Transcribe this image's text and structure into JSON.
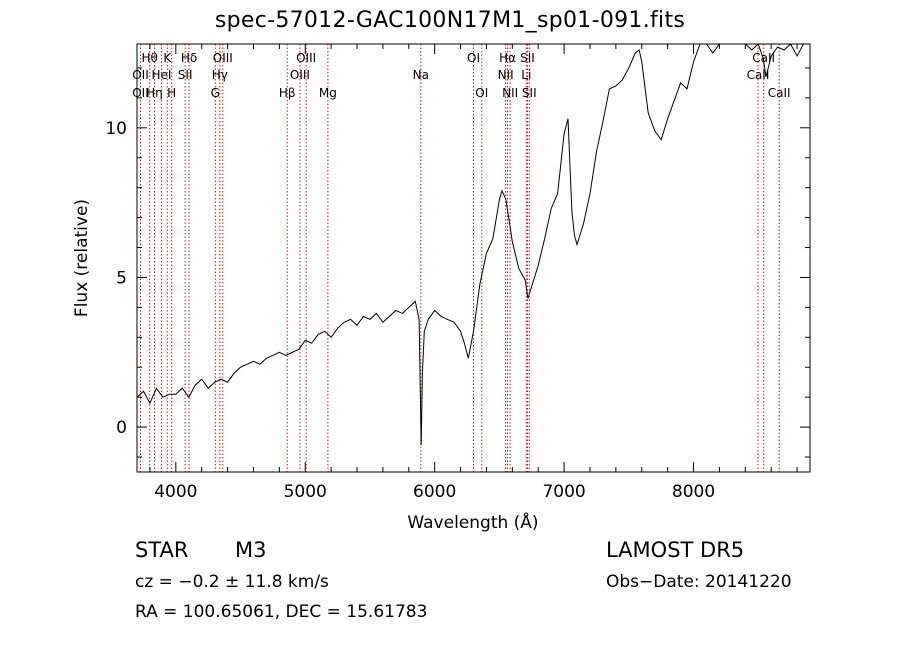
{
  "page": {
    "title": "spec-57012-GAC100N17M1_sp01-091.fits",
    "object_class": "STAR",
    "subclass": "M3",
    "survey": "LAMOST  DR5",
    "cz": "cz = −0.2 ± 11.8 km/s",
    "obs_date": "Obs−Date: 20141220",
    "coords": "RA = 100.65061, DEC =  15.61783"
  },
  "chart_data": {
    "type": "line",
    "title": "spec-57012-GAC100N17M1_sp01-091.fits",
    "xlabel": "Wavelength (Å)",
    "ylabel": "Flux (relative)",
    "xlim": [
      3700,
      8900
    ],
    "ylim": [
      -1.5,
      12.8
    ],
    "x_ticks": [
      4000,
      5000,
      6000,
      7000,
      8000
    ],
    "y_ticks": [
      0,
      5,
      10
    ],
    "grid": false,
    "series": [
      {
        "color": "#000000",
        "x": [
          3700,
          3750,
          3800,
          3850,
          3900,
          3950,
          4000,
          4050,
          4100,
          4150,
          4200,
          4250,
          4300,
          4350,
          4400,
          4450,
          4500,
          4550,
          4600,
          4650,
          4700,
          4750,
          4800,
          4850,
          4900,
          4950,
          5000,
          5050,
          5100,
          5150,
          5200,
          5250,
          5300,
          5350,
          5400,
          5450,
          5500,
          5550,
          5600,
          5650,
          5700,
          5750,
          5800,
          5850,
          5880,
          5890,
          5896,
          5905,
          5920,
          5950,
          6000,
          6050,
          6100,
          6150,
          6200,
          6230,
          6260,
          6300,
          6350,
          6400,
          6450,
          6500,
          6520,
          6550,
          6600,
          6650,
          6700,
          6720,
          6750,
          6800,
          6850,
          6900,
          6950,
          7000,
          7030,
          7060,
          7080,
          7100,
          7150,
          7200,
          7250,
          7300,
          7350,
          7400,
          7450,
          7500,
          7550,
          7580,
          7600,
          7650,
          7700,
          7750,
          7800,
          7850,
          7900,
          7950,
          8000,
          8050,
          8100,
          8150,
          8200,
          8250,
          8300,
          8350,
          8400,
          8450,
          8500,
          8540,
          8560,
          8600,
          8650,
          8700,
          8750,
          8800,
          8850,
          8900
        ],
        "y": [
          1.0,
          1.2,
          0.8,
          1.3,
          1.0,
          1.1,
          1.1,
          1.3,
          1.0,
          1.4,
          1.6,
          1.3,
          1.5,
          1.6,
          1.5,
          1.8,
          2.0,
          2.1,
          2.2,
          2.1,
          2.3,
          2.4,
          2.5,
          2.4,
          2.5,
          2.6,
          2.9,
          2.8,
          3.1,
          3.2,
          3.0,
          3.3,
          3.5,
          3.6,
          3.4,
          3.7,
          3.6,
          3.8,
          3.5,
          3.7,
          3.9,
          3.8,
          4.0,
          4.2,
          3.6,
          1.0,
          -0.6,
          1.8,
          3.2,
          3.6,
          3.9,
          3.7,
          3.6,
          3.5,
          3.2,
          2.8,
          2.3,
          3.2,
          4.8,
          5.8,
          6.3,
          7.6,
          7.9,
          7.6,
          6.2,
          5.3,
          4.9,
          4.3,
          4.7,
          5.4,
          6.3,
          7.3,
          7.8,
          9.8,
          10.3,
          7.2,
          6.4,
          6.1,
          6.8,
          7.8,
          9.2,
          10.2,
          11.3,
          11.4,
          11.6,
          12.0,
          12.5,
          12.6,
          12.2,
          10.5,
          9.9,
          9.6,
          10.3,
          10.9,
          11.5,
          11.3,
          12.2,
          12.8,
          13.0,
          12.5,
          12.8,
          13.2,
          13.1,
          12.9,
          13.1,
          12.6,
          13.0,
          12.3,
          11.7,
          12.4,
          12.7,
          12.6,
          12.9,
          12.4,
          12.8,
          13.0
        ]
      }
    ],
    "lines": [
      {
        "name": "Hθ",
        "x": 3798,
        "row": 1
      },
      {
        "name": "OII",
        "x": 3727,
        "row": 2
      },
      {
        "name": "OII",
        "x": 3727,
        "row": 3
      },
      {
        "name": "Hη",
        "x": 3835,
        "row": 3
      },
      {
        "name": "HeI",
        "x": 3889,
        "row": 2
      },
      {
        "name": "K",
        "x": 3934,
        "row": 1
      },
      {
        "name": "H",
        "x": 3968,
        "row": 3
      },
      {
        "name": "Hδ",
        "x": 4102,
        "row": 1
      },
      {
        "name": "SII",
        "x": 4072,
        "row": 2
      },
      {
        "name": "OIII",
        "x": 4363,
        "row": 1
      },
      {
        "name": "Hγ",
        "x": 4340,
        "row": 2
      },
      {
        "name": "G",
        "x": 4305,
        "row": 3
      },
      {
        "name": "Hβ",
        "x": 4861,
        "row": 3
      },
      {
        "name": "OIII",
        "x": 4959,
        "row": 2
      },
      {
        "name": "OIII",
        "x": 5007,
        "row": 1
      },
      {
        "name": "Mg",
        "x": 5175,
        "row": 3
      },
      {
        "name": "Na",
        "x": 5893,
        "row": 2
      },
      {
        "name": "OI",
        "x": 6300,
        "row": 1
      },
      {
        "name": "OI",
        "x": 6364,
        "row": 3
      },
      {
        "name": "Hα",
        "x": 6563,
        "row": 1
      },
      {
        "name": "NII",
        "x": 6548,
        "row": 2
      },
      {
        "name": "NII",
        "x": 6583,
        "row": 3
      },
      {
        "name": "SII",
        "x": 6717,
        "row": 1
      },
      {
        "name": "Li",
        "x": 6708,
        "row": 2
      },
      {
        "name": "SII",
        "x": 6731,
        "row": 3
      },
      {
        "name": "CaII",
        "x": 8542,
        "row": 1
      },
      {
        "name": "CaII",
        "x": 8498,
        "row": 2
      },
      {
        "name": "CaII",
        "x": 8662,
        "row": 3
      }
    ]
  }
}
